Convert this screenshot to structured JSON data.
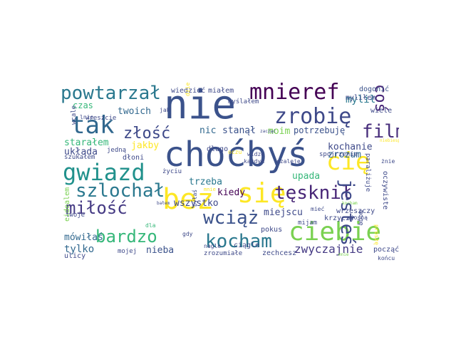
{
  "words": [
    {
      "text": "nie",
      "color": "#3b528b",
      "weight": 1.0
    },
    {
      "text": "choćbyś",
      "color": "#3b528b",
      "weight": 0.95
    },
    {
      "text": "bez",
      "color": "#fde725",
      "weight": 0.85
    },
    {
      "text": "się",
      "color": "#fde725",
      "weight": 0.8
    },
    {
      "text": "ciebie",
      "color": "#7ad151",
      "weight": 0.75
    },
    {
      "text": "gwiazd",
      "color": "#21918c",
      "weight": 0.7
    },
    {
      "text": "cię",
      "color": "#fde725",
      "weight": 0.7
    },
    {
      "text": "tak",
      "color": "#31688e",
      "weight": 0.65
    },
    {
      "text": "zrobię",
      "color": "#3e4989",
      "weight": 0.62
    },
    {
      "text": "mnieref",
      "color": "#440154",
      "weight": 0.6
    },
    {
      "text": "powtarzał",
      "color": "#2a788e",
      "weight": 0.55
    },
    {
      "text": "szlochał",
      "color": "#2a788e",
      "weight": 0.55
    },
    {
      "text": "tęsknił",
      "color": "#482677",
      "weight": 0.55
    },
    {
      "text": "wciąż",
      "color": "#3b528b",
      "weight": 0.55
    },
    {
      "text": "kocham",
      "color": "#2a788e",
      "weight": 0.55
    },
    {
      "text": "jesteś",
      "color": "#3e4989",
      "weight": 0.5
    },
    {
      "text": "film",
      "color": "#472d7b",
      "weight": 0.5
    },
    {
      "text": "miłość",
      "color": "#443983",
      "weight": 0.5
    },
    {
      "text": "bardzo",
      "color": "#35b779",
      "weight": 0.5
    },
    {
      "text": "złość",
      "color": "#3e4989",
      "weight": 0.45
    },
    {
      "text": "coś",
      "color": "#482677",
      "weight": 0.45
    },
    {
      "text": "zwyczajnie",
      "color": "#443983",
      "weight": 0.35
    },
    {
      "text": "mylił",
      "color": "#2a788e",
      "weight": 0.3
    },
    {
      "text": "miejscu",
      "color": "#3e4989",
      "weight": 0.3
    },
    {
      "text": "tylko",
      "color": "#31688e",
      "weight": 0.28
    },
    {
      "text": "nieba",
      "color": "#3b528b",
      "weight": 0.28
    },
    {
      "text": "trzeba",
      "color": "#2a788e",
      "weight": 0.25
    },
    {
      "text": "kiedy",
      "color": "#440154",
      "weight": 0.25
    },
    {
      "text": "stanął",
      "color": "#3b528b",
      "weight": 0.25
    },
    {
      "text": "moim",
      "color": "#7ad151",
      "weight": 0.25
    },
    {
      "text": "kochanie",
      "color": "#3e4989",
      "weight": 0.25
    },
    {
      "text": "wszystko",
      "color": "#3e4989",
      "weight": 0.22
    },
    {
      "text": "upada",
      "color": "#35b779",
      "weight": 0.22
    },
    {
      "text": "zrozum",
      "color": "#31688e",
      "weight": 0.22
    },
    {
      "text": "twoich",
      "color": "#31688e",
      "weight": 0.22
    },
    {
      "text": "jakby",
      "color": "#fde725",
      "weight": 0.22
    },
    {
      "text": "starałem",
      "color": "#35b779",
      "weight": 0.22
    },
    {
      "text": "układa",
      "color": "#3e4989",
      "weight": 0.22
    },
    {
      "text": "mówiłaś",
      "color": "#31688e",
      "weight": 0.2
    },
    {
      "text": "nic",
      "color": "#31688e",
      "weight": 0.2
    },
    {
      "text": "czas",
      "color": "#35b779",
      "weight": 0.2
    },
    {
      "text": "potrzebuję",
      "color": "#3b528b",
      "weight": 0.2
    },
    {
      "text": "wrzeszczy",
      "color": "#3e4989",
      "weight": 0.18
    },
    {
      "text": "krzyczy",
      "color": "#3e4989",
      "weight": 0.18
    },
    {
      "text": "dogonić",
      "color": "#3b528b",
      "weight": 0.18
    },
    {
      "text": "wiedzieć",
      "color": "#3e4989",
      "weight": 0.18
    },
    {
      "text": "miałem",
      "color": "#3e4989",
      "weight": 0.18
    },
    {
      "text": "myliłem",
      "color": "#3e4989",
      "weight": 0.18
    },
    {
      "text": "zechcesz",
      "color": "#3e4989",
      "weight": 0.16
    },
    {
      "text": "począć",
      "color": "#3e4989",
      "weight": 0.16
    },
    {
      "text": "ulicy",
      "color": "#3e4989",
      "weight": 0.16
    },
    {
      "text": "długo",
      "color": "#3e4989",
      "weight": 0.16
    },
    {
      "text": "pokus",
      "color": "#3e4989",
      "weight": 0.16
    },
    {
      "text": "ciągle",
      "color": "#3e4989",
      "weight": 0.16
    },
    {
      "text": "dłoni",
      "color": "#3e4989",
      "weight": 0.16
    },
    {
      "text": "oczywiste",
      "color": "#3e4989",
      "weight": 0.16
    },
    {
      "text": "wiele",
      "color": "#3e4989",
      "weight": 0.16
    },
    {
      "text": "myślałem",
      "color": "#3e4989",
      "weight": 0.14
    },
    {
      "text": "jedną",
      "color": "#3e4989",
      "weight": 0.14
    },
    {
      "text": "życiu",
      "color": "#3e4989",
      "weight": 0.14
    },
    {
      "text": "wreszcie",
      "color": "#3e4989",
      "weight": 0.14
    },
    {
      "text": "zrozumiałe",
      "color": "#3e4989",
      "weight": 0.14
    },
    {
      "text": "mijam",
      "color": "#3e4989",
      "weight": 0.14
    },
    {
      "text": "mojej",
      "color": "#3e4989",
      "weight": 0.14
    },
    {
      "text": "szukałem",
      "color": "#3e4989",
      "weight": 0.14
    },
    {
      "text": "twoje",
      "color": "#3e4989",
      "weight": 0.14
    },
    {
      "text": "wcale",
      "color": "#3e4989",
      "weight": 0.14
    },
    {
      "text": "spojrzenie",
      "color": "#3e4989",
      "weight": 0.14
    },
    {
      "text": "paraliżuje",
      "color": "#3e4989",
      "weight": 0.14
    },
    {
      "text": "mogę",
      "color": "#3e4989",
      "weight": 0.14
    },
    {
      "text": "końcu",
      "color": "#3e4989",
      "weight": 0.12
    },
    {
      "text": "nagle",
      "color": "#3e4989",
      "weight": 0.12
    },
    {
      "text": "szaleję",
      "color": "#3e4989",
      "weight": 0.12
    },
    {
      "text": "każdym",
      "color": "#3e4989",
      "weight": 0.12
    },
    {
      "text": "widzę",
      "color": "#3e4989",
      "weight": 0.12
    },
    {
      "text": "oczu",
      "color": "#fde725",
      "weight": 0.12
    },
    {
      "text": "mieć",
      "color": "#3e4989",
      "weight": 0.12
    },
    {
      "text": "wiosną",
      "color": "#3e4989",
      "weight": 0.12
    },
    {
      "text": "proszę",
      "color": "#fde725",
      "weight": 0.12
    },
    {
      "text": "dzieje",
      "color": "#fde725",
      "weight": 0.12
    },
    {
      "text": "byłaś",
      "color": "#3e4989",
      "weight": 0.12
    },
    {
      "text": "gdy",
      "color": "#3e4989",
      "weight": 0.12
    },
    {
      "text": "dla",
      "color": "#35b779",
      "weight": 0.12
    },
    {
      "text": "jak",
      "color": "#3e4989",
      "weight": 0.12
    },
    {
      "text": "lnie",
      "color": "#3e4989",
      "weight": 0.12
    },
    {
      "text": "żnie",
      "color": "#3e4989",
      "weight": 0.12
    },
    {
      "text": "eidealem",
      "color": "#7ad151",
      "weight": 0.2
    },
    {
      "text": "mnie",
      "color": "#fde725",
      "weight": 0.1
    },
    {
      "text": "bałem",
      "color": "#3e4989",
      "weight": 0.1
    },
    {
      "text": "niebiespu",
      "color": "#fde725",
      "weight": 0.1
    },
    {
      "text": "zacząć",
      "color": "#3e4989",
      "weight": 0.1
    },
    {
      "text": "kocham",
      "color": "#7ad151",
      "weight": 0.1
    },
    {
      "text": "mnie",
      "color": "#7ad151",
      "weight": 0.1
    }
  ]
}
